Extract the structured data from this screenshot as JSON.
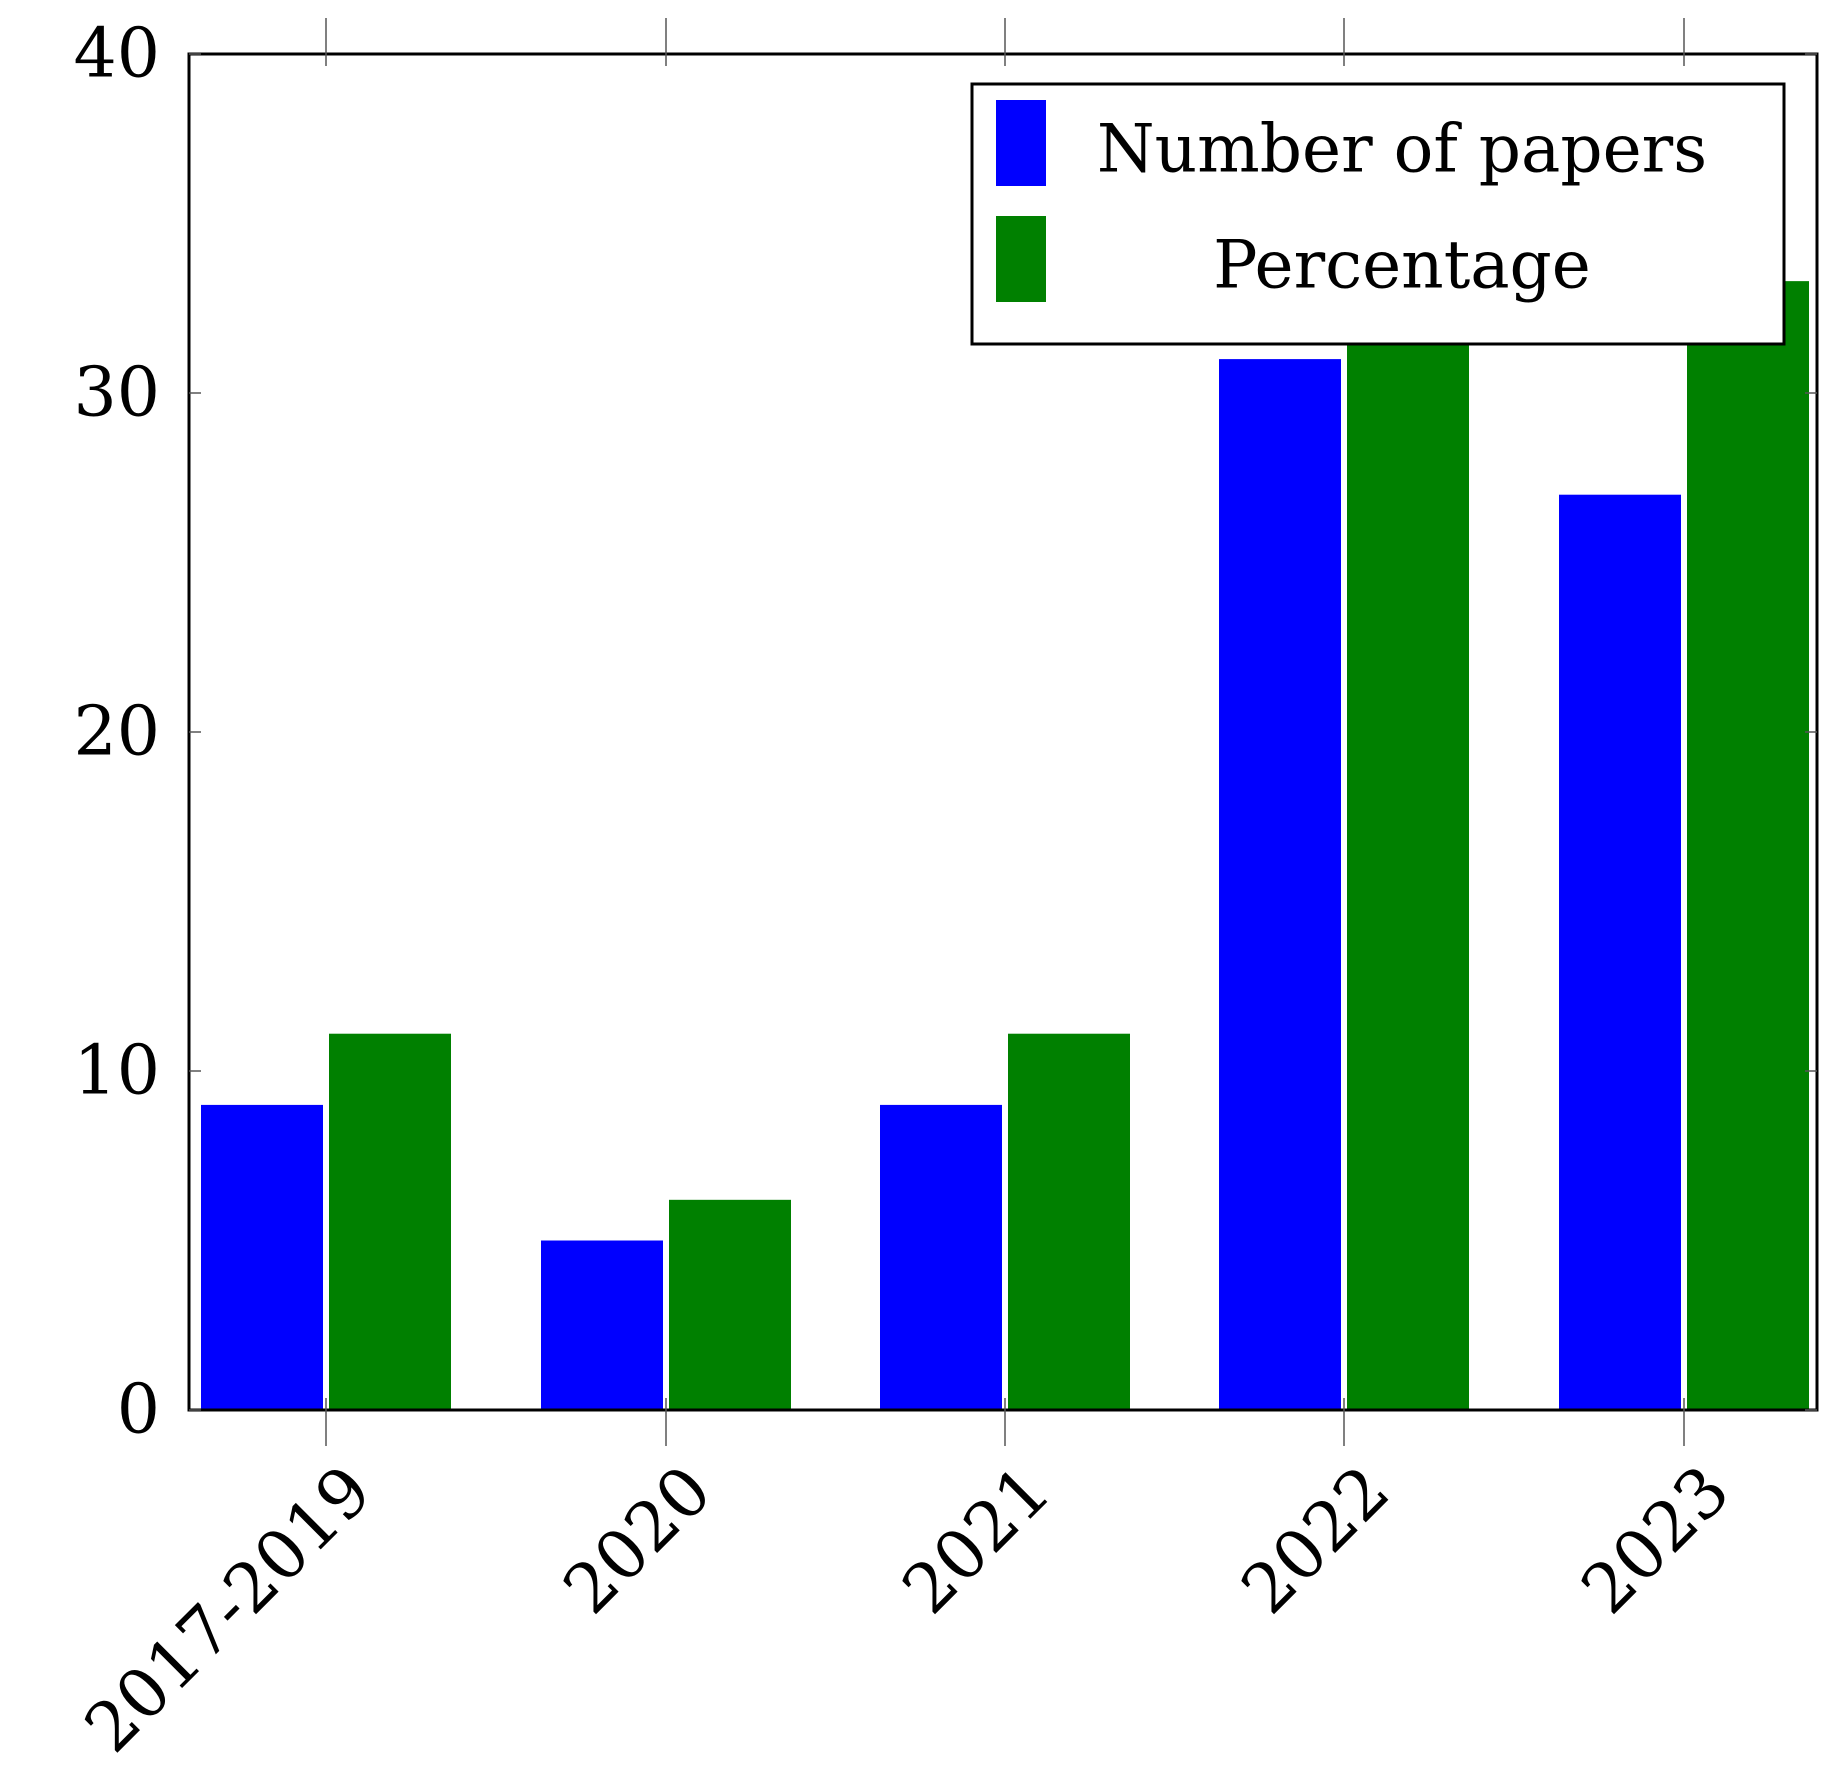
{
  "chart_data": {
    "type": "bar",
    "title": "",
    "xlabel": "",
    "ylabel": "",
    "categories": [
      "2017-2019",
      "2020",
      "2021",
      "2022",
      "2023"
    ],
    "series": [
      {
        "name": "Number of papers",
        "color": "#0000ff",
        "values": [
          9,
          5,
          9,
          31,
          27
        ]
      },
      {
        "name": "Percentage",
        "color": "#008000",
        "values": [
          11.1,
          6.2,
          11.1,
          38.3,
          33.3
        ]
      }
    ],
    "ylim": [
      0,
      40
    ],
    "yticks": [
      "0",
      "10",
      "20",
      "30",
      "40"
    ],
    "grid": false,
    "legend_position": "top-right"
  }
}
